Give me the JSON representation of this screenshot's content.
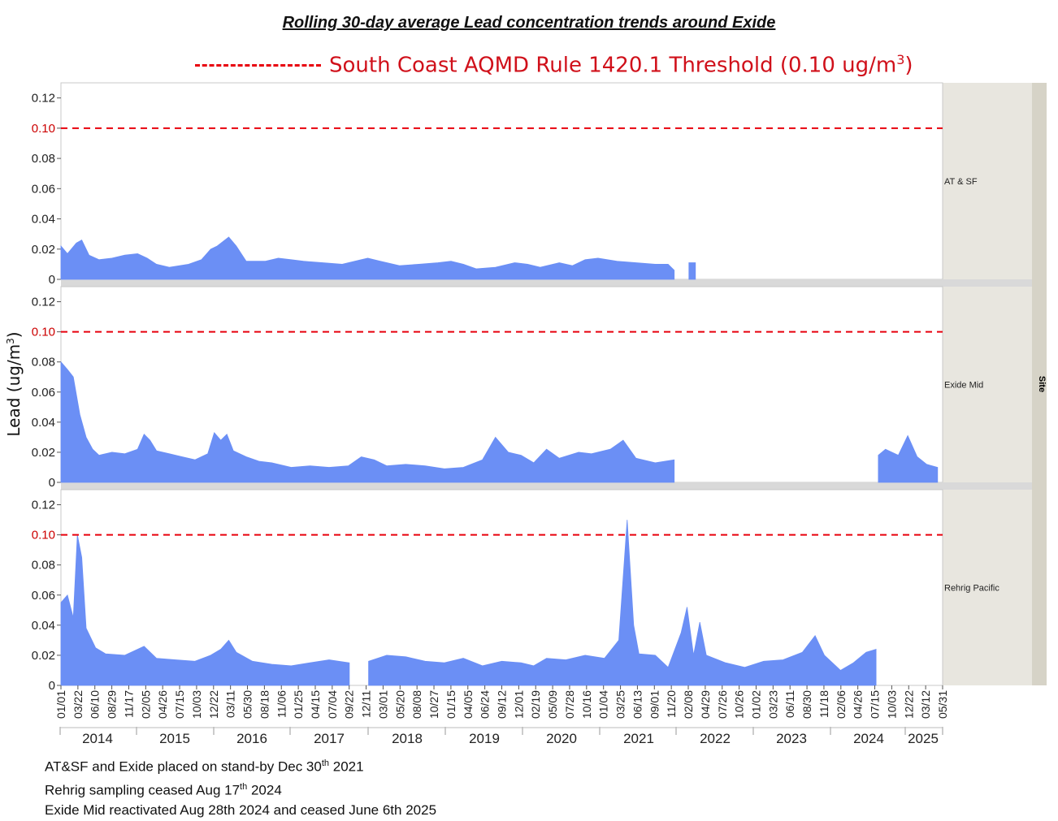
{
  "title": "Rolling 30-day average Lead concentration trends around Exide",
  "threshold_legend": {
    "label": "South Coast AQMD Rule 1420.1 Threshold (0.10 ug/m",
    "sup": "3",
    "suffix": ")"
  },
  "colors": {
    "area": "#6b8ff5",
    "threshold": "#e8000c",
    "facet_bg": "#e8e6df",
    "facet_strip": "#d6d3c7"
  },
  "notes": [
    {
      "pre": "AT&SF and Exide placed on stand-by Dec 30",
      "sup": "th",
      "post": " 2021"
    },
    {
      "pre": "Rehrig sampling ceased Aug 17",
      "sup": "th",
      "post": " 2024"
    },
    {
      "pre": "Exide Mid reactivated Aug 28th 2024 and ceased June 6th 2025",
      "sup": "",
      "post": ""
    }
  ],
  "chart_data": {
    "type": "area",
    "ylabel": "Lead (ug/m3)",
    "ylabel_main": "Lead (ug/m",
    "ylabel_sup": "3",
    "ylabel_close": ")",
    "facet_label": "Site",
    "ylim": [
      0,
      0.13
    ],
    "yticks": [
      "0",
      "0.02",
      "0.04",
      "0.06",
      "0.08",
      "0.10",
      "0.12"
    ],
    "threshold": 0.1,
    "x_tick_labels": [
      "01/01",
      "03/22",
      "06/10",
      "08/29",
      "11/17",
      "02/05",
      "04/26",
      "07/15",
      "10/03",
      "12/22",
      "03/11",
      "05/30",
      "08/18",
      "11/06",
      "01/25",
      "04/15",
      "07/04",
      "09/22",
      "12/11",
      "03/01",
      "05/20",
      "08/08",
      "10/27",
      "01/15",
      "04/05",
      "06/24",
      "09/12",
      "12/01",
      "02/19",
      "05/09",
      "07/28",
      "10/16",
      "01/04",
      "03/25",
      "06/13",
      "09/01",
      "11/20",
      "02/08",
      "04/29",
      "07/26",
      "10/26",
      "01/02",
      "03/23",
      "06/11",
      "08/30",
      "11/18",
      "02/06",
      "04/26",
      "07/15",
      "10/03",
      "12/22",
      "03/12",
      "05/31"
    ],
    "year_labels": [
      "2014",
      "2015",
      "2016",
      "2017",
      "2018",
      "2019",
      "2020",
      "2021",
      "2022",
      "2023",
      "2024",
      "2025"
    ],
    "series": [
      {
        "name": "AT & SF",
        "points": [
          [
            "2014-01-01",
            0.022
          ],
          [
            "2014-02-01",
            0.017
          ],
          [
            "2014-03-15",
            0.024
          ],
          [
            "2014-04-10",
            0.026
          ],
          [
            "2014-05-15",
            0.016
          ],
          [
            "2014-07-01",
            0.013
          ],
          [
            "2014-09-01",
            0.014
          ],
          [
            "2014-11-01",
            0.016
          ],
          [
            "2015-01-01",
            0.017
          ],
          [
            "2015-02-15",
            0.014
          ],
          [
            "2015-04-01",
            0.01
          ],
          [
            "2015-06-01",
            0.008
          ],
          [
            "2015-09-01",
            0.01
          ],
          [
            "2015-11-01",
            0.013
          ],
          [
            "2015-12-15",
            0.02
          ],
          [
            "2016-01-15",
            0.022
          ],
          [
            "2016-03-10",
            0.028
          ],
          [
            "2016-04-15",
            0.022
          ],
          [
            "2016-06-01",
            0.012
          ],
          [
            "2016-09-01",
            0.012
          ],
          [
            "2016-11-01",
            0.014
          ],
          [
            "2017-01-01",
            0.013
          ],
          [
            "2017-03-01",
            0.012
          ],
          [
            "2017-06-01",
            0.011
          ],
          [
            "2017-09-01",
            0.01
          ],
          [
            "2017-12-01",
            0.013
          ],
          [
            "2018-01-01",
            0.014
          ],
          [
            "2018-03-01",
            0.012
          ],
          [
            "2018-06-01",
            0.009
          ],
          [
            "2018-09-01",
            0.01
          ],
          [
            "2018-12-01",
            0.011
          ],
          [
            "2019-02-01",
            0.012
          ],
          [
            "2019-04-01",
            0.01
          ],
          [
            "2019-06-01",
            0.007
          ],
          [
            "2019-09-01",
            0.008
          ],
          [
            "2019-12-01",
            0.011
          ],
          [
            "2020-02-01",
            0.01
          ],
          [
            "2020-04-01",
            0.008
          ],
          [
            "2020-07-01",
            0.011
          ],
          [
            "2020-09-01",
            0.009
          ],
          [
            "2020-11-01",
            0.013
          ],
          [
            "2021-01-01",
            0.014
          ],
          [
            "2021-04-01",
            0.012
          ],
          [
            "2021-07-01",
            0.011
          ],
          [
            "2021-10-01",
            0.01
          ],
          [
            "2021-12-01",
            0.01
          ],
          [
            "2021-12-30",
            0.006
          ],
          null,
          [
            "2022-03-10",
            0.011
          ],
          [
            "2022-04-10",
            0.011
          ]
        ]
      },
      {
        "name": "Exide Mid",
        "points": [
          [
            "2014-01-01",
            0.08
          ],
          [
            "2014-02-01",
            0.075
          ],
          [
            "2014-03-01",
            0.07
          ],
          [
            "2014-04-01",
            0.045
          ],
          [
            "2014-05-01",
            0.03
          ],
          [
            "2014-06-01",
            0.022
          ],
          [
            "2014-07-01",
            0.018
          ],
          [
            "2014-09-01",
            0.02
          ],
          [
            "2014-11-01",
            0.019
          ],
          [
            "2015-01-01",
            0.022
          ],
          [
            "2015-02-01",
            0.032
          ],
          [
            "2015-03-01",
            0.028
          ],
          [
            "2015-04-01",
            0.021
          ],
          [
            "2015-06-01",
            0.019
          ],
          [
            "2015-08-01",
            0.017
          ],
          [
            "2015-10-01",
            0.015
          ],
          [
            "2015-12-01",
            0.019
          ],
          [
            "2016-01-01",
            0.033
          ],
          [
            "2016-02-01",
            0.028
          ],
          [
            "2016-03-01",
            0.032
          ],
          [
            "2016-04-01",
            0.021
          ],
          [
            "2016-06-01",
            0.017
          ],
          [
            "2016-08-01",
            0.014
          ],
          [
            "2016-10-01",
            0.013
          ],
          [
            "2017-01-01",
            0.01
          ],
          [
            "2017-04-01",
            0.011
          ],
          [
            "2017-07-01",
            0.01
          ],
          [
            "2017-10-01",
            0.011
          ],
          [
            "2017-12-01",
            0.017
          ],
          [
            "2018-02-01",
            0.015
          ],
          [
            "2018-04-01",
            0.011
          ],
          [
            "2018-07-01",
            0.012
          ],
          [
            "2018-10-01",
            0.011
          ],
          [
            "2019-01-01",
            0.009
          ],
          [
            "2019-04-01",
            0.01
          ],
          [
            "2019-07-01",
            0.015
          ],
          [
            "2019-09-01",
            0.03
          ],
          [
            "2019-11-01",
            0.02
          ],
          [
            "2020-01-01",
            0.018
          ],
          [
            "2020-03-01",
            0.013
          ],
          [
            "2020-05-01",
            0.022
          ],
          [
            "2020-07-01",
            0.016
          ],
          [
            "2020-10-01",
            0.02
          ],
          [
            "2020-12-01",
            0.019
          ],
          [
            "2021-03-01",
            0.022
          ],
          [
            "2021-05-01",
            0.028
          ],
          [
            "2021-07-01",
            0.016
          ],
          [
            "2021-10-01",
            0.013
          ],
          [
            "2021-12-30",
            0.015
          ],
          null,
          [
            "2024-08-28",
            0.018
          ],
          [
            "2024-10-01",
            0.022
          ],
          [
            "2024-12-01",
            0.018
          ],
          [
            "2025-01-15",
            0.031
          ],
          [
            "2025-03-01",
            0.017
          ],
          [
            "2025-04-15",
            0.012
          ],
          [
            "2025-06-06",
            0.01
          ]
        ]
      },
      {
        "name": "Rehrig Pacific",
        "points": [
          [
            "2014-01-01",
            0.055
          ],
          [
            "2014-02-01",
            0.06
          ],
          [
            "2014-03-01",
            0.045
          ],
          [
            "2014-03-20",
            0.1
          ],
          [
            "2014-04-10",
            0.085
          ],
          [
            "2014-05-01",
            0.038
          ],
          [
            "2014-06-15",
            0.025
          ],
          [
            "2014-08-01",
            0.021
          ],
          [
            "2014-11-01",
            0.02
          ],
          [
            "2015-02-01",
            0.026
          ],
          [
            "2015-04-01",
            0.018
          ],
          [
            "2015-07-01",
            0.017
          ],
          [
            "2015-10-01",
            0.016
          ],
          [
            "2015-12-15",
            0.02
          ],
          [
            "2016-02-01",
            0.024
          ],
          [
            "2016-03-10",
            0.03
          ],
          [
            "2016-04-15",
            0.022
          ],
          [
            "2016-07-01",
            0.016
          ],
          [
            "2016-10-01",
            0.014
          ],
          [
            "2017-01-01",
            0.013
          ],
          [
            "2017-04-01",
            0.015
          ],
          [
            "2017-07-01",
            0.017
          ],
          [
            "2017-10-05",
            0.015
          ],
          null,
          [
            "2018-01-05",
            0.016
          ],
          [
            "2018-04-01",
            0.02
          ],
          [
            "2018-07-01",
            0.019
          ],
          [
            "2018-10-01",
            0.016
          ],
          [
            "2019-01-01",
            0.015
          ],
          [
            "2019-04-01",
            0.018
          ],
          [
            "2019-07-01",
            0.013
          ],
          [
            "2019-10-01",
            0.016
          ],
          [
            "2020-01-01",
            0.015
          ],
          [
            "2020-03-01",
            0.013
          ],
          [
            "2020-05-01",
            0.018
          ],
          [
            "2020-08-01",
            0.017
          ],
          [
            "2020-11-01",
            0.02
          ],
          [
            "2021-02-01",
            0.018
          ],
          [
            "2021-04-10",
            0.03
          ],
          [
            "2021-05-20",
            0.11
          ],
          [
            "2021-06-20",
            0.04
          ],
          [
            "2021-07-15",
            0.021
          ],
          [
            "2021-10-01",
            0.02
          ],
          [
            "2021-12-01",
            0.012
          ],
          [
            "2022-02-01",
            0.035
          ],
          [
            "2022-03-01",
            0.052
          ],
          [
            "2022-04-01",
            0.02
          ],
          [
            "2022-05-01",
            0.042
          ],
          [
            "2022-06-01",
            0.02
          ],
          [
            "2022-09-01",
            0.015
          ],
          [
            "2022-12-01",
            0.012
          ],
          [
            "2023-03-01",
            0.016
          ],
          [
            "2023-06-01",
            0.017
          ],
          [
            "2023-09-01",
            0.022
          ],
          [
            "2023-11-01",
            0.033
          ],
          [
            "2023-12-15",
            0.02
          ],
          [
            "2024-03-01",
            0.01
          ],
          [
            "2024-05-01",
            0.015
          ],
          [
            "2024-07-01",
            0.022
          ],
          [
            "2024-08-17",
            0.024
          ]
        ]
      }
    ]
  }
}
